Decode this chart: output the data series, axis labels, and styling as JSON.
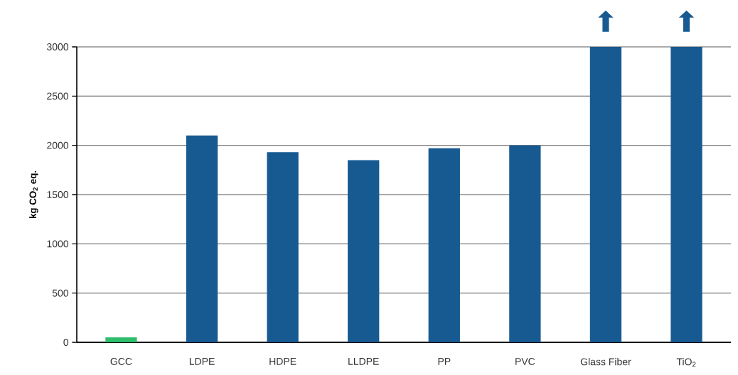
{
  "chart_data": {
    "type": "bar",
    "ylabel": "kg CO$_{2}$ eq.",
    "categories": [
      "GCC",
      "LDPE",
      "HDPE",
      "LLDPE",
      "PP",
      "PVC",
      "Glass Fiber",
      "TiO$_{2}$"
    ],
    "values": [
      50,
      2100,
      1930,
      1850,
      1970,
      2000,
      3000,
      3000
    ],
    "colors": [
      "#2ebd6b",
      "#175a92",
      "#175a92",
      "#175a92",
      "#175a92",
      "#175a92",
      "#175a92",
      "#175a92"
    ],
    "ylim": [
      0,
      3000
    ],
    "yticks": [
      0,
      500,
      1000,
      1500,
      2000,
      2500,
      3000
    ],
    "grid": "y"
  }
}
